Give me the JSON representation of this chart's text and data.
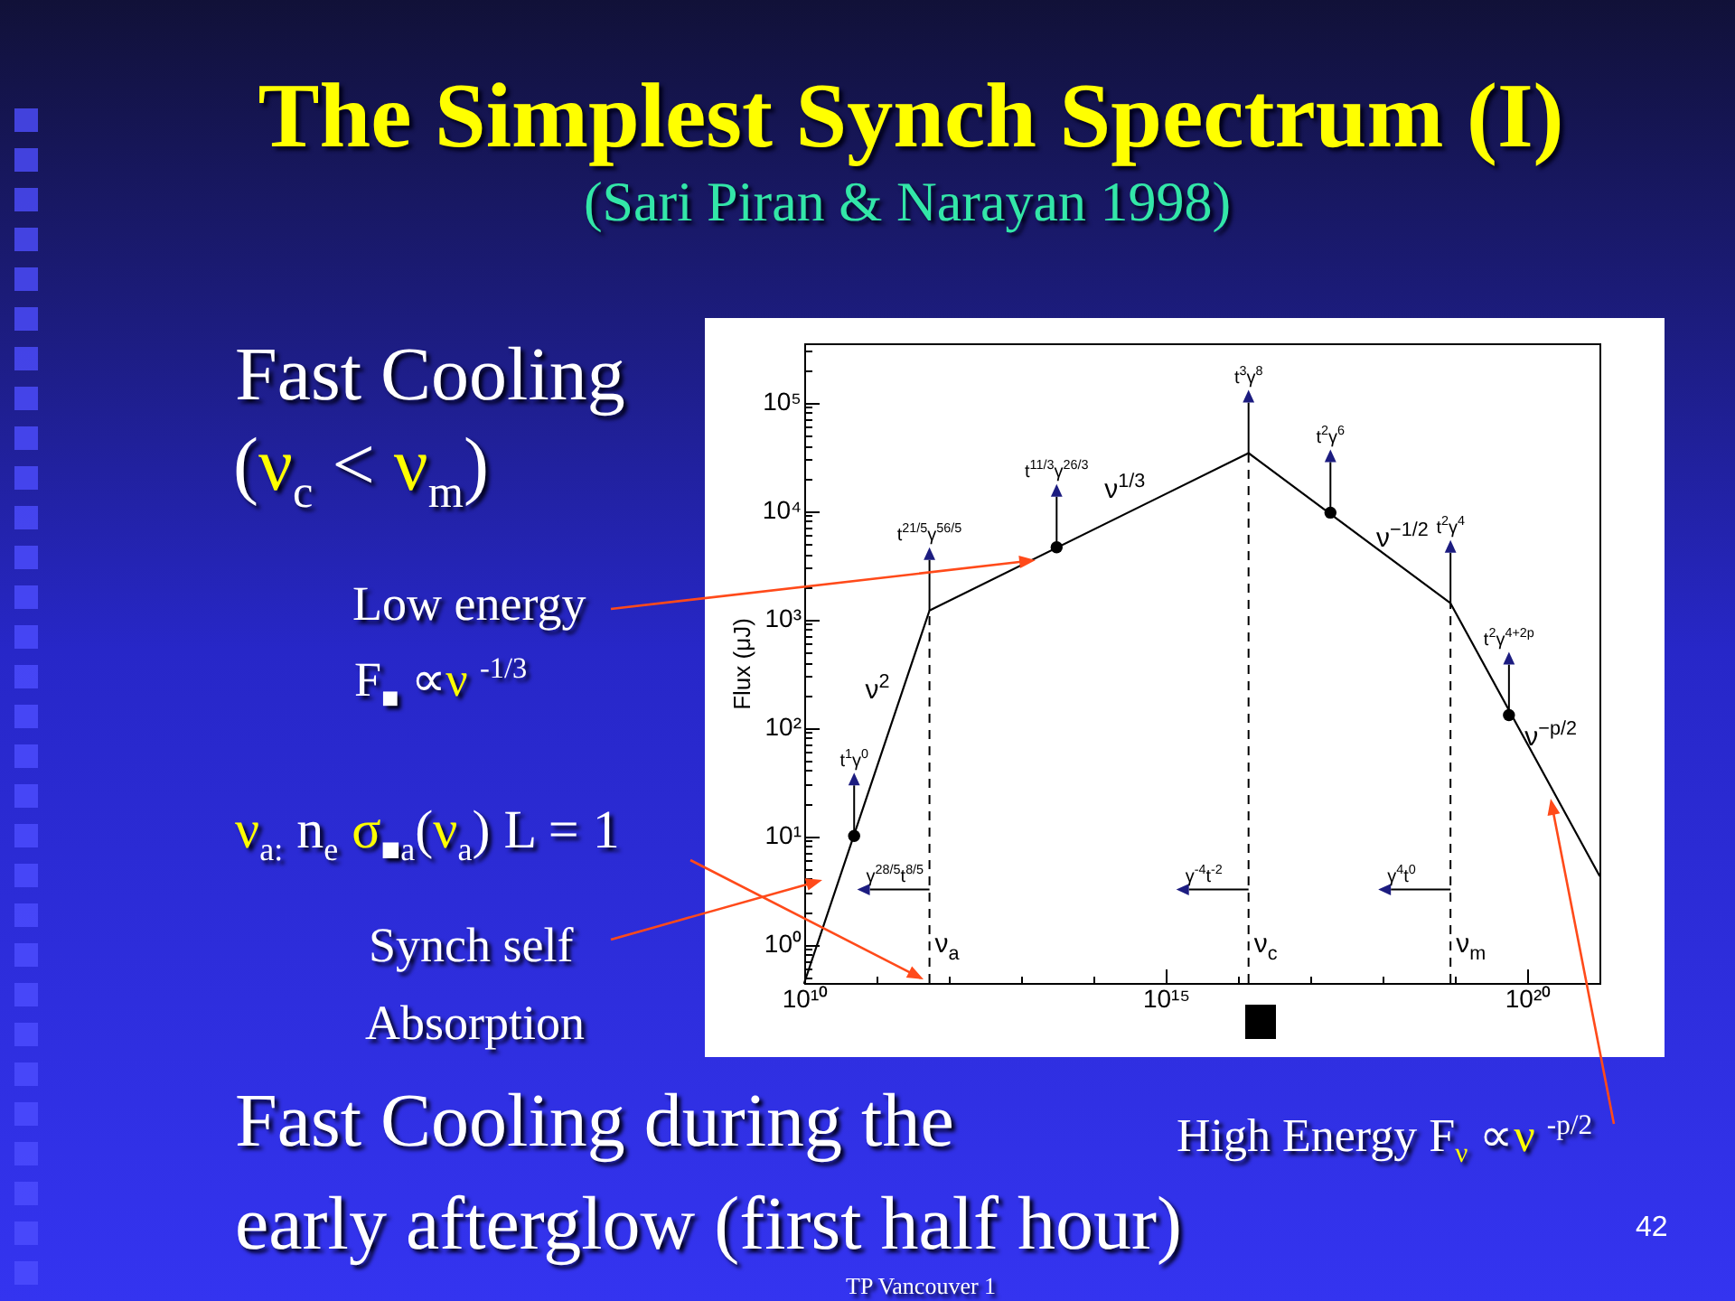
{
  "chart_data": {
    "type": "line",
    "title": "The Simplest Synch Spectrum (I)",
    "subtitle": "(Sari Piran & Narayan 1998)",
    "ylabel": "Flux (μJ)",
    "log": "xy",
    "line_style": "solid",
    "xlim": [
      10000000000.0,
      1e+21
    ],
    "ylim": [
      0.44,
      350000
    ],
    "xticks": [
      {
        "value": 10000000000.0,
        "label": "10¹⁰"
      },
      {
        "value": 100000000000.0,
        "label": null
      },
      {
        "value": 1000000000000.0,
        "label": null
      },
      {
        "value": 10000000000000.0,
        "label": null
      },
      {
        "value": 100000000000000.0,
        "label": null
      },
      {
        "value": 1000000000000000.0,
        "label": "10¹⁵"
      },
      {
        "value": 1e+16,
        "label": null
      },
      {
        "value": 1e+17,
        "label": null
      },
      {
        "value": 1e+18,
        "label": null
      },
      {
        "value": 1e+19,
        "label": null
      },
      {
        "value": 1e+20,
        "label": "10²⁰"
      }
    ],
    "yticks": [
      {
        "value": 0.5,
        "label": null
      },
      {
        "value": 0.6,
        "label": null
      },
      {
        "value": 0.7,
        "label": null
      },
      {
        "value": 0.8,
        "label": null
      },
      {
        "value": 0.9,
        "label": null
      },
      {
        "value": 1,
        "label": "10⁰"
      },
      {
        "value": 2,
        "label": null
      },
      {
        "value": 3,
        "label": null
      },
      {
        "value": 4,
        "label": null
      },
      {
        "value": 5,
        "label": null
      },
      {
        "value": 6,
        "label": null
      },
      {
        "value": 7,
        "label": null
      },
      {
        "value": 8,
        "label": null
      },
      {
        "value": 9,
        "label": null
      },
      {
        "value": 10,
        "label": "10¹"
      },
      {
        "value": 20,
        "label": null
      },
      {
        "value": 30,
        "label": null
      },
      {
        "value": 40,
        "label": null
      },
      {
        "value": 50,
        "label": null
      },
      {
        "value": 60,
        "label": null
      },
      {
        "value": 70,
        "label": null
      },
      {
        "value": 80,
        "label": null
      },
      {
        "value": 90,
        "label": null
      },
      {
        "value": 100,
        "label": "10²"
      },
      {
        "value": 200,
        "label": null
      },
      {
        "value": 300,
        "label": null
      },
      {
        "value": 400,
        "label": null
      },
      {
        "value": 500,
        "label": null
      },
      {
        "value": 600,
        "label": null
      },
      {
        "value": 700,
        "label": null
      },
      {
        "value": 800,
        "label": null
      },
      {
        "value": 900,
        "label": null
      },
      {
        "value": 1000,
        "label": "10³"
      },
      {
        "value": 2000,
        "label": null
      },
      {
        "value": 3000,
        "label": null
      },
      {
        "value": 4000,
        "label": null
      },
      {
        "value": 5000,
        "label": null
      },
      {
        "value": 6000,
        "label": null
      },
      {
        "value": 7000,
        "label": null
      },
      {
        "value": 8000,
        "label": null
      },
      {
        "value": 9000,
        "label": null
      },
      {
        "value": 10000,
        "label": "10⁴"
      },
      {
        "value": 20000,
        "label": null
      },
      {
        "value": 30000,
        "label": null
      },
      {
        "value": 40000,
        "label": null
      },
      {
        "value": 50000,
        "label": null
      },
      {
        "value": 60000,
        "label": null
      },
      {
        "value": 70000,
        "label": null
      },
      {
        "value": 80000,
        "label": null
      },
      {
        "value": 90000,
        "label": null
      },
      {
        "value": 100000,
        "label": "10⁵"
      },
      {
        "value": 200000,
        "label": null
      },
      {
        "value": 300000,
        "label": null
      }
    ],
    "series": [
      {
        "color": "#000000",
        "x": [
          10000000000.0,
          540000000000.0,
          1.4e+16,
          8.7e+18,
          1e+21
        ],
        "values": [
          0.44,
          1200,
          34000,
          1400,
          4.3
        ]
      },
      {
        "type": "scatter",
        "marker": "circle",
        "color": "#000000",
        "x": [
          49000000000.0,
          31000000000000.0,
          1.9e+17,
          5.6e+19
        ],
        "values": [
          10,
          4600,
          9600,
          130
        ]
      }
    ],
    "ref_lines": [
      {
        "axis": "x",
        "value": 540000000000.0,
        "label": "ν$_{a}$",
        "line_style": "dashed",
        "color": "#000000"
      },
      {
        "axis": "x",
        "value": 1.4e+16,
        "label": "ν$_{c}$",
        "line_style": "dashed",
        "color": "#000000"
      },
      {
        "axis": "x",
        "value": 8.7e+18,
        "label": "ν$_{m}$",
        "line_style": "dashed",
        "color": "#000000"
      }
    ],
    "annotations": [
      "Fast Cooling",
      "(ν$_{c}$ < ν$_{m}$)",
      "Low energy",
      "F$_{■}$ ∝ν $^{-1/3}$",
      "ν$_{a:}$ n$_{e}$ σ$_{■a}$(ν$_{a}$) L = 1",
      "Synch self",
      "Absorption",
      "Fast Cooling during the",
      "early afterglow (first half hour)",
      "High Energy F$_{ν}$ ∝ν $^{-p/2}$",
      "TP Vancouver 1",
      "42",
      {
        "text": "ν$^{2}$",
        "x": 210000000000.0,
        "y": 190
      },
      {
        "text": "ν$^{1/3}$",
        "x": 380000000000000.0,
        "y": 10000
      },
      {
        "text": "ν$^{−1/2}$",
        "x": 1.2e+18,
        "y": 3700
      },
      {
        "text": "ν$^{−p/2}$",
        "x": 1.1e+20,
        "y": 65
      },
      {
        "text": "t$^{1}$γ$^{0}$",
        "x": 49000000000.0,
        "y": 10
      },
      {
        "text": "t$^{21/5}$γ$^{56/5}$",
        "x": 540000000000.0,
        "y": 1200
      },
      {
        "text": "t$^{11/3}$γ$^{26/3}$",
        "x": 31000000000000.0,
        "y": 4600
      },
      {
        "text": "t$^{3}$γ$^{8}$",
        "x": 1.4e+16,
        "y": 34000
      },
      {
        "text": "t$^{2}$γ$^{6}$",
        "x": 1.9e+17,
        "y": 9600
      },
      {
        "text": "t$^{2}$γ$^{4}$",
        "x": 8.7e+18,
        "y": 1400
      },
      {
        "text": "t$^{2}$γ$^{4+2p}$",
        "x": 5.6e+19,
        "y": 130
      },
      {
        "text": "γ$^{28/5}$t$^{8/5}$",
        "x": 540000000000.0,
        "y": 3.2
      },
      {
        "text": "γ$^{-4}$t$^{-2}$",
        "x": 1.4e+16,
        "y": 3.2
      },
      {
        "text": "γ$^{4}$t$^{0}$",
        "x": 8.7e+18,
        "y": 3.2
      }
    ]
  }
}
